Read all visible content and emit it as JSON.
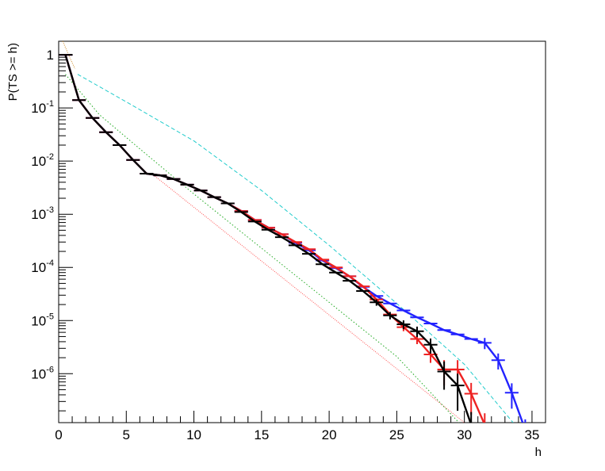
{
  "chart_data": {
    "type": "line",
    "title": "",
    "xlabel": "h",
    "ylabel": "P(TS >= h)",
    "xlim": [
      0,
      36
    ],
    "ylim": [
      1.2e-07,
      1.8
    ],
    "yscale": "log",
    "grid": false,
    "legend": "none",
    "x_ticks": [
      {
        "value": 0,
        "label": "0"
      },
      {
        "value": 5,
        "label": "5"
      },
      {
        "value": 10,
        "label": "10"
      },
      {
        "value": 15,
        "label": "15"
      },
      {
        "value": 20,
        "label": "20"
      },
      {
        "value": 25,
        "label": "25"
      },
      {
        "value": 30,
        "label": "30"
      },
      {
        "value": 35,
        "label": "35"
      }
    ],
    "y_ticks": [
      {
        "value": 1,
        "base": "1",
        "exp": ""
      },
      {
        "value": 0.1,
        "base": "10",
        "exp": "-1"
      },
      {
        "value": 0.01,
        "base": "10",
        "exp": "-2"
      },
      {
        "value": 0.001,
        "base": "10",
        "exp": "-3"
      },
      {
        "value": 0.0001,
        "base": "10",
        "exp": "-4"
      },
      {
        "value": 1e-05,
        "base": "10",
        "exp": "-5"
      },
      {
        "value": 1e-06,
        "base": "10",
        "exp": "-6"
      }
    ],
    "reference_curves": [
      {
        "color": "#ff5555",
        "dash": "1,1.5",
        "x": [
          7,
          30
        ],
        "y": [
          0.0055,
          1.2e-07
        ]
      },
      {
        "color": "#22aa22",
        "dash": "1.5,2.5",
        "x": [
          0.5,
          3,
          6,
          10,
          15,
          20,
          25,
          29.6
        ],
        "y": [
          0.43,
          0.075,
          0.017,
          0.0024,
          0.00023,
          2.2e-05,
          2.1e-06,
          1.2e-07
        ]
      },
      {
        "color": "#22cccc",
        "dash": "5,3",
        "x": [
          1.4,
          5,
          10,
          15,
          20,
          25,
          30,
          33.6
        ],
        "y": [
          0.43,
          0.13,
          0.024,
          0.0028,
          0.00026,
          2.1e-05,
          1.5e-06,
          1.2e-07
        ]
      },
      {
        "color": "#cc8822",
        "dash": "1,1.5",
        "x": [
          0.3,
          0.6,
          0.9,
          1.2
        ],
        "y": [
          1.8,
          1.2,
          0.8,
          0.55
        ]
      }
    ],
    "series": [
      {
        "color": "#2222ff",
        "x": [
          0.5,
          1.5,
          2.5,
          3.5,
          4.5,
          5.5,
          6.5,
          7.5,
          8.5,
          9.5,
          10.5,
          11.5,
          12.5,
          13.5,
          14.5,
          15.5,
          16.5,
          17.5,
          18.5,
          19.5,
          20.5,
          21.5,
          22.5,
          23.5,
          24.5,
          25.5,
          26.5,
          27.5,
          28.5,
          29.5,
          30.5,
          31.5,
          32.5,
          33.5,
          34.5
        ],
        "y": [
          1.0,
          0.14,
          0.065,
          0.035,
          0.02,
          0.0105,
          0.0058,
          0.0054,
          0.0046,
          0.0036,
          0.0028,
          0.0021,
          0.0016,
          0.00115,
          0.00078,
          0.00056,
          0.00042,
          0.00029,
          0.00021,
          0.000135,
          9.7e-05,
          6.8e-05,
          4.3e-05,
          2.9e-05,
          2.1e-05,
          1.55e-05,
          1.15e-05,
          8.8e-06,
          6.6e-06,
          5.5e-06,
          4.5e-06,
          3.8e-06,
          1.8e-06,
          4.4e-07,
          8.8e-08
        ],
        "y_err": [
          0,
          0,
          0,
          0,
          0,
          0,
          0,
          0,
          0,
          0,
          0,
          0,
          0,
          0,
          0,
          0,
          0,
          0,
          0,
          0,
          0,
          0,
          0,
          0,
          0,
          0,
          0,
          0,
          0,
          0,
          0,
          9e-07,
          6e-07,
          2.2e-07,
          5e-08
        ]
      },
      {
        "color": "#ee2222",
        "x": [
          0.5,
          1.5,
          2.5,
          3.5,
          4.5,
          5.5,
          6.5,
          7.5,
          8.5,
          9.5,
          10.5,
          11.5,
          12.5,
          13.5,
          14.5,
          15.5,
          16.5,
          17.5,
          18.5,
          19.5,
          20.5,
          21.5,
          22.5,
          23.5,
          24.5,
          25.5,
          26.5,
          27.5,
          28.5,
          29.5,
          30.5,
          31.5
        ],
        "y": [
          1.0,
          0.14,
          0.065,
          0.035,
          0.02,
          0.0105,
          0.0058,
          0.0054,
          0.0046,
          0.0036,
          0.0028,
          0.0021,
          0.0016,
          0.00115,
          0.00078,
          0.00056,
          0.00042,
          0.0003,
          0.00022,
          0.00014,
          0.0001,
          6.8e-05,
          4.4e-05,
          2.5e-05,
          1.3e-05,
          7.5e-06,
          4.5e-06,
          2.3e-06,
          1.2e-06,
          1.2e-06,
          4.2e-07,
          1.1e-07
        ],
        "y_err": [
          0,
          0,
          0,
          0,
          0,
          0,
          0,
          0,
          0,
          0,
          0,
          0,
          0,
          0,
          0,
          0,
          0,
          0,
          0,
          0,
          0,
          0,
          0,
          0,
          0,
          1.2e-06,
          9e-07,
          7e-07,
          6e-07,
          6e-07,
          2.5e-07,
          7e-08
        ]
      },
      {
        "color": "#000000",
        "x": [
          0.5,
          1.5,
          2.5,
          3.5,
          4.5,
          5.5,
          6.5,
          7.5,
          8.5,
          9.5,
          10.5,
          11.5,
          12.5,
          13.5,
          14.5,
          15.5,
          16.5,
          17.5,
          18.5,
          19.5,
          20.5,
          21.5,
          22.5,
          23.5,
          24.5,
          25.5,
          26.5,
          27.5,
          28.5,
          29.5,
          30.5
        ],
        "y": [
          1.0,
          0.14,
          0.065,
          0.035,
          0.02,
          0.0105,
          0.0058,
          0.0054,
          0.0046,
          0.0036,
          0.0028,
          0.0021,
          0.0016,
          0.0011,
          0.00073,
          0.00051,
          0.00037,
          0.00026,
          0.00018,
          0.000115,
          8e-05,
          5.6e-05,
          3.6e-05,
          2.2e-05,
          1.25e-05,
          8.5e-06,
          6.3e-06,
          3.5e-06,
          1.1e-06,
          6e-07,
          1.1e-07
        ],
        "y_err": [
          0,
          0,
          0,
          0,
          0,
          0,
          0,
          0,
          0,
          0,
          0,
          0,
          0,
          0,
          0,
          0,
          0,
          0,
          0,
          0,
          0,
          0,
          0,
          3e-06,
          2e-06,
          1.6e-06,
          1.4e-06,
          1.1e-06,
          6e-07,
          4e-07,
          8e-08
        ]
      }
    ]
  }
}
